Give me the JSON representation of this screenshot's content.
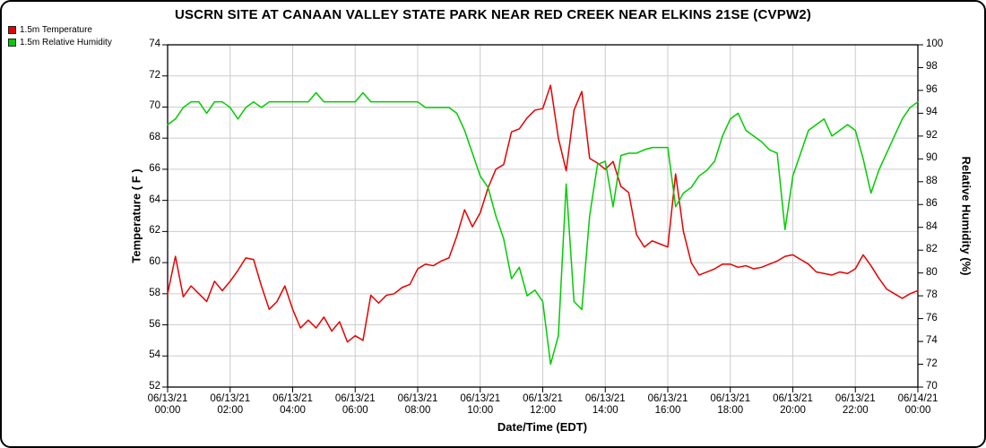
{
  "window": {
    "title": "USCRN SITE AT CANAAN VALLEY STATE PARK NEAR RED CREEK NEAR ELKINS 21SE (CVPW2)"
  },
  "chart_data": {
    "type": "line",
    "title": "USCRN SITE AT CANAAN VALLEY STATE PARK NEAR RED CREEK NEAR ELKINS 21SE (CVPW2)",
    "xlabel": "Date/Time (EDT)",
    "grid": true,
    "legend_position": "top-left",
    "colors": {
      "grid": "#cccccc",
      "plot_border": "#000000",
      "background": "#ffffff"
    },
    "x_start_hour": 0,
    "x_end_hour": 24,
    "x_step_hour": 0.25,
    "x_tick_step_hour": 2,
    "x_ticks": [
      {
        "date": "06/13/21",
        "time": "00:00"
      },
      {
        "date": "06/13/21",
        "time": "02:00"
      },
      {
        "date": "06/13/21",
        "time": "04:00"
      },
      {
        "date": "06/13/21",
        "time": "06:00"
      },
      {
        "date": "06/13/21",
        "time": "08:00"
      },
      {
        "date": "06/13/21",
        "time": "10:00"
      },
      {
        "date": "06/13/21",
        "time": "12:00"
      },
      {
        "date": "06/13/21",
        "time": "14:00"
      },
      {
        "date": "06/13/21",
        "time": "16:00"
      },
      {
        "date": "06/13/21",
        "time": "18:00"
      },
      {
        "date": "06/13/21",
        "time": "20:00"
      },
      {
        "date": "06/13/21",
        "time": "22:00"
      },
      {
        "date": "06/14/21",
        "time": "00:00"
      }
    ],
    "left_axis": {
      "label": "Temperature ( F )",
      "min": 52,
      "max": 74,
      "tick_step": 2,
      "ticks": [
        52,
        54,
        56,
        58,
        60,
        62,
        64,
        66,
        68,
        70,
        72,
        74
      ]
    },
    "right_axis": {
      "label": "Relative Humidity (%)",
      "min": 70,
      "max": 100,
      "tick_step": 2,
      "ticks": [
        70,
        72,
        74,
        76,
        78,
        80,
        82,
        84,
        86,
        88,
        90,
        92,
        94,
        96,
        98,
        100
      ]
    },
    "series": [
      {
        "name": "1.5m Temperature",
        "color": "#e60000",
        "axis": "left",
        "values": [
          58.0,
          60.4,
          57.8,
          58.5,
          58.0,
          57.5,
          58.8,
          58.2,
          58.8,
          59.5,
          60.3,
          60.2,
          58.5,
          57.0,
          57.5,
          58.5,
          57.0,
          55.8,
          56.3,
          55.8,
          56.5,
          55.6,
          56.2,
          54.9,
          55.3,
          55.0,
          57.9,
          57.4,
          57.9,
          58.0,
          58.4,
          58.6,
          59.6,
          59.9,
          59.8,
          60.1,
          60.3,
          61.7,
          63.4,
          62.3,
          63.2,
          64.8,
          66.0,
          66.3,
          68.4,
          68.6,
          69.3,
          69.8,
          69.9,
          71.4,
          68.0,
          65.9,
          69.8,
          71.0,
          66.7,
          66.4,
          66.0,
          66.5,
          64.9,
          64.5,
          61.8,
          61.0,
          61.4,
          61.2,
          61.0,
          65.7,
          62.0,
          60.0,
          59.2,
          59.4,
          59.6,
          59.9,
          59.9,
          59.7,
          59.8,
          59.6,
          59.7,
          59.9,
          60.1,
          60.4,
          60.5,
          60.2,
          59.9,
          59.4,
          59.3,
          59.2,
          59.4,
          59.3,
          59.6,
          60.5,
          59.8,
          59.0,
          58.3,
          58.0,
          57.7,
          58.0,
          58.2
        ]
      },
      {
        "name": "1.5m Relative Humidity",
        "color": "#00cc00",
        "axis": "right",
        "values": [
          93.0,
          93.5,
          94.5,
          95.0,
          95.0,
          94.0,
          95.0,
          95.0,
          94.5,
          93.5,
          94.5,
          95.0,
          94.5,
          95.0,
          95.0,
          95.0,
          95.0,
          95.0,
          95.0,
          95.8,
          95.0,
          95.0,
          95.0,
          95.0,
          95.0,
          95.8,
          95.0,
          95.0,
          95.0,
          95.0,
          95.0,
          95.0,
          95.0,
          94.5,
          94.5,
          94.5,
          94.5,
          94.0,
          92.5,
          90.5,
          88.5,
          87.5,
          85.0,
          83.0,
          79.5,
          80.5,
          78.0,
          78.5,
          77.5,
          72.0,
          74.5,
          87.8,
          77.5,
          76.8,
          85.0,
          89.5,
          89.8,
          85.8,
          90.3,
          90.5,
          90.5,
          90.8,
          91.0,
          91.0,
          91.0,
          85.8,
          87.0,
          87.5,
          88.5,
          89.0,
          89.8,
          92.0,
          93.5,
          94.0,
          92.5,
          92.0,
          91.5,
          90.8,
          90.5,
          83.8,
          88.5,
          90.5,
          92.5,
          93.0,
          93.5,
          92.0,
          92.5,
          93.0,
          92.5,
          90.0,
          87.0,
          89.0,
          90.5,
          92.0,
          93.5,
          94.5,
          95.0
        ]
      }
    ]
  }
}
